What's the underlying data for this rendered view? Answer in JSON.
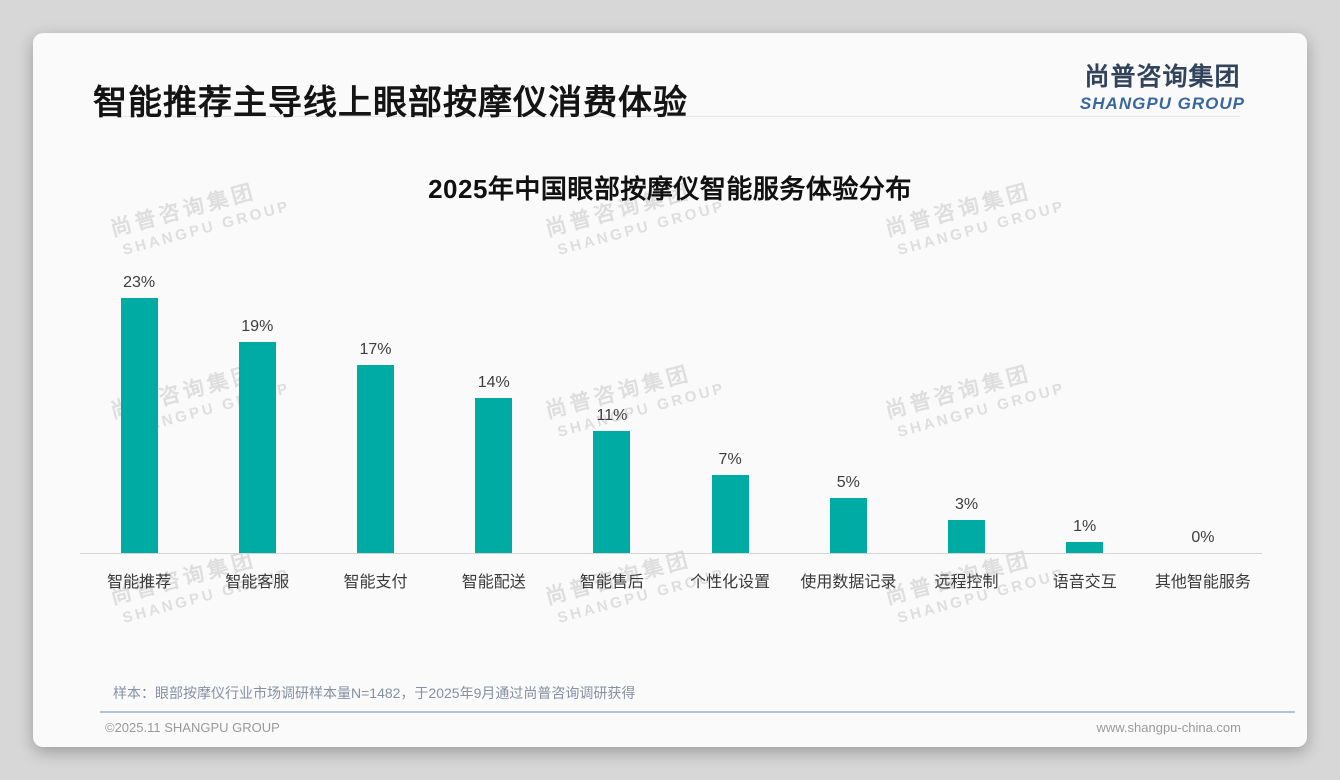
{
  "page": {
    "header": {
      "title": "智能推荐主导线上眼部按摩仪消费体验"
    },
    "logo": {
      "cn": "尚普咨询集团",
      "en": "SHANGPU GROUP"
    },
    "watermark": {
      "cn": "尚普咨询集团",
      "en": "SHANGPU GROUP"
    },
    "note": "样本：眼部按摩仪行业市场调研样本量N=1482，于2025年9月通过尚普咨询调研获得",
    "footer": {
      "left": "©2025.11 SHANGPU GROUP",
      "right": "www.shangpu-china.com"
    }
  },
  "colors": {
    "bar": "#00ABA4",
    "logo_cn": "#31445c",
    "logo_en": "#38679f",
    "footer_divider": "#b3c2d6"
  },
  "chart_data": {
    "type": "bar",
    "title": "2025年中国眼部按摩仪智能服务体验分布",
    "categories": [
      "智能推荐",
      "智能客服",
      "智能支付",
      "智能配送",
      "智能售后",
      "个性化设置",
      "使用数据记录",
      "远程控制",
      "语音交互",
      "其他智能服务"
    ],
    "values": [
      23,
      19,
      17,
      14,
      11,
      7,
      5,
      3,
      1,
      0
    ],
    "unit": "%",
    "value_label_format": "{value}%",
    "bar_color": "#00ABA4",
    "xlabel": "",
    "ylabel": "",
    "ylim": [
      0,
      25
    ],
    "grid": false,
    "legend": false,
    "y_axis_visible": false,
    "x_axis_visible": true
  }
}
